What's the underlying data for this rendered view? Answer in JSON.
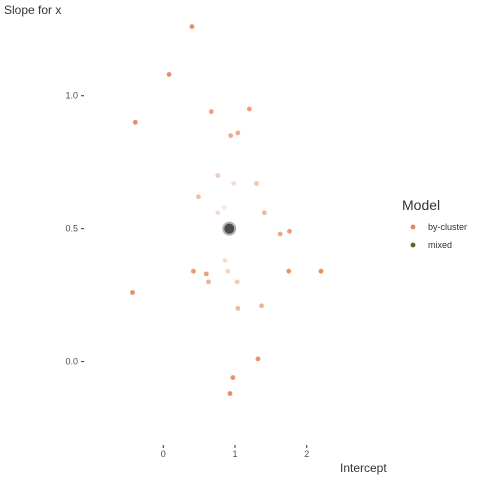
{
  "chart_data": {
    "type": "scatter",
    "xlabel": "Intercept",
    "ylabel": "Slope for x",
    "xlim": [
      -1.05,
      3.05
    ],
    "ylim": [
      -0.34,
      1.33
    ],
    "x_ticks": [
      0,
      1,
      2
    ],
    "x_tick_labels": [
      "0",
      "1",
      "2"
    ],
    "y_ticks": [
      0.0,
      0.5,
      1.0
    ],
    "y_tick_labels": [
      "0.0",
      "0.5",
      "1.0"
    ],
    "grid": false,
    "legend": {
      "title": "Model",
      "placement": "right",
      "entries": [
        {
          "label": "by-cluster",
          "color": "#e8875a"
        },
        {
          "label": "mixed",
          "color": "#556b1f"
        }
      ]
    },
    "series": [
      {
        "name": "by-cluster",
        "color": "#e8875a",
        "points": [
          {
            "x": 0.4,
            "y": 1.26,
            "a": 0.95
          },
          {
            "x": 0.08,
            "y": 1.08,
            "a": 0.95
          },
          {
            "x": -0.39,
            "y": 0.9,
            "a": 0.95
          },
          {
            "x": 0.67,
            "y": 0.94,
            "a": 0.8
          },
          {
            "x": 1.2,
            "y": 0.95,
            "a": 0.8
          },
          {
            "x": 0.94,
            "y": 0.85,
            "a": 0.7
          },
          {
            "x": 1.04,
            "y": 0.86,
            "a": 0.7
          },
          {
            "x": 0.76,
            "y": 0.7,
            "a": 0.45
          },
          {
            "x": 0.98,
            "y": 0.67,
            "a": 0.3
          },
          {
            "x": 1.3,
            "y": 0.67,
            "a": 0.5
          },
          {
            "x": 0.49,
            "y": 0.62,
            "a": 0.55
          },
          {
            "x": 0.85,
            "y": 0.58,
            "a": 0.2
          },
          {
            "x": 0.76,
            "y": 0.56,
            "a": 0.3
          },
          {
            "x": 1.41,
            "y": 0.56,
            "a": 0.6
          },
          {
            "x": 1.63,
            "y": 0.48,
            "a": 0.75
          },
          {
            "x": 1.76,
            "y": 0.49,
            "a": 0.8
          },
          {
            "x": 0.86,
            "y": 0.38,
            "a": 0.3
          },
          {
            "x": 0.9,
            "y": 0.34,
            "a": 0.35
          },
          {
            "x": 0.42,
            "y": 0.34,
            "a": 0.85
          },
          {
            "x": 0.6,
            "y": 0.33,
            "a": 0.8
          },
          {
            "x": 0.63,
            "y": 0.3,
            "a": 0.65
          },
          {
            "x": 1.03,
            "y": 0.3,
            "a": 0.45
          },
          {
            "x": 1.75,
            "y": 0.34,
            "a": 0.9
          },
          {
            "x": 2.2,
            "y": 0.34,
            "a": 0.95
          },
          {
            "x": -0.43,
            "y": 0.26,
            "a": 0.95
          },
          {
            "x": 1.04,
            "y": 0.2,
            "a": 0.6
          },
          {
            "x": 1.37,
            "y": 0.21,
            "a": 0.65
          },
          {
            "x": 1.32,
            "y": 0.01,
            "a": 0.9
          },
          {
            "x": 0.97,
            "y": -0.06,
            "a": 0.9
          },
          {
            "x": 0.93,
            "y": -0.12,
            "a": 0.95
          }
        ]
      },
      {
        "name": "mixed",
        "color": "#556b1f",
        "points": [
          {
            "x": 0.92,
            "y": 0.5,
            "a": 1.0
          }
        ]
      }
    ]
  }
}
